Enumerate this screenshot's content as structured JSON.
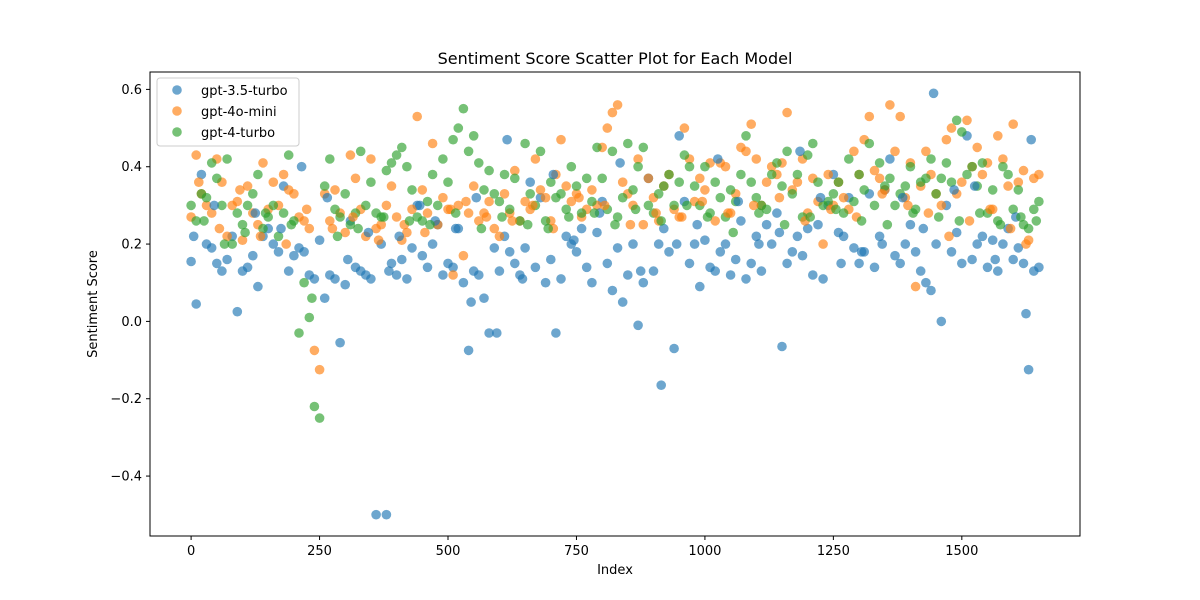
{
  "chart_data": {
    "type": "scatter",
    "title": "Sentiment Score Scatter Plot for Each Model",
    "xlabel": "Index",
    "ylabel": "Sentiment Score",
    "xlim": [
      -80,
      1730
    ],
    "ylim": [
      -0.555,
      0.645
    ],
    "xticks": [
      0,
      250,
      500,
      750,
      1000,
      1250,
      1500
    ],
    "yticks": [
      -0.4,
      -0.2,
      0.0,
      0.2,
      0.4,
      0.6
    ],
    "xtick_labels": [
      "0",
      "250",
      "500",
      "750",
      "1000",
      "1250",
      "1500"
    ],
    "ytick_labels": [
      "−0.4",
      "−0.2",
      "0.0",
      "0.2",
      "0.4",
      "0.6"
    ],
    "grid": false,
    "legend_position": "top-left",
    "n_points": 166,
    "x_step": 10,
    "series": [
      {
        "name": "gpt-3.5-turbo",
        "color": "#1f77b4",
        "y": [
          0.155,
          0.045,
          0.38,
          0.2,
          0.19,
          0.15,
          0.13,
          0.16,
          0.22,
          0.025,
          0.13,
          0.14,
          0.17,
          0.09,
          0.22,
          0.24,
          0.2,
          0.18,
          0.35,
          0.13,
          0.17,
          0.19,
          0.18,
          0.12,
          0.11,
          0.21,
          0.06,
          0.12,
          0.11,
          -0.055,
          0.095,
          0.26,
          0.14,
          0.13,
          0.12,
          0.11,
          -0.5,
          0.2,
          -0.5,
          0.15,
          0.12,
          0.16,
          0.11,
          0.19,
          0.3,
          0.17,
          0.14,
          0.2,
          0.25,
          0.12,
          0.15,
          0.14,
          0.24,
          0.1,
          -0.075,
          0.13,
          0.12,
          0.06,
          -0.03,
          0.19,
          0.13,
          0.22,
          0.18,
          0.15,
          0.12,
          0.19,
          0.36,
          0.14,
          0.32,
          0.1,
          0.16,
          -0.03,
          0.11,
          0.22,
          0.2,
          0.18,
          0.24,
          0.14,
          0.1,
          0.23,
          0.31,
          0.15,
          0.08,
          0.19,
          0.05,
          0.12,
          0.2,
          -0.01,
          0.1,
          0.37,
          0.13,
          0.2,
          0.24,
          0.18,
          -0.07,
          0.48,
          0.31,
          0.15,
          0.2,
          0.09,
          0.21,
          0.14,
          0.13,
          0.18,
          0.2,
          0.12,
          0.16,
          0.26,
          0.11,
          0.15,
          0.22,
          0.13,
          0.25,
          0.2,
          0.28,
          -0.065,
          0.15,
          0.18,
          0.22,
          0.17,
          0.24,
          0.12,
          0.25,
          0.11,
          0.3,
          0.38,
          0.23,
          0.22,
          0.32,
          0.19,
          0.15,
          0.18,
          0.33,
          0.14,
          0.22,
          0.34,
          0.42,
          0.17,
          0.15,
          0.2,
          0.25,
          0.18,
          0.13,
          0.1,
          0.08,
          0.2,
          0.0,
          0.3,
          0.18,
          0.23,
          0.15,
          0.48,
          0.16,
          0.2,
          0.22,
          0.14,
          0.21,
          0.13,
          0.2,
          0.24,
          0.16,
          0.19,
          0.15,
          -0.125,
          0.13,
          0.14
        ]
      },
      {
        "name": "gpt-4o-mini",
        "color": "#ff7f0e",
        "y": [
          0.27,
          0.43,
          0.33,
          0.3,
          0.28,
          0.42,
          0.36,
          0.22,
          0.3,
          0.31,
          0.21,
          0.35,
          0.28,
          0.25,
          0.41,
          0.29,
          0.36,
          0.3,
          0.38,
          0.34,
          0.33,
          0.27,
          0.26,
          0.24,
          -0.075,
          -0.125,
          0.33,
          0.26,
          0.34,
          0.28,
          0.23,
          0.43,
          0.37,
          0.29,
          0.22,
          0.42,
          0.24,
          0.25,
          0.3,
          0.35,
          0.27,
          0.21,
          0.23,
          0.29,
          0.53,
          0.34,
          0.28,
          0.46,
          0.25,
          0.32,
          0.29,
          0.12,
          0.3,
          0.17,
          0.28,
          0.35,
          0.26,
          0.28,
          0.31,
          0.24,
          0.22,
          0.33,
          0.28,
          0.39,
          0.26,
          0.31,
          0.29,
          0.42,
          0.34,
          0.32,
          0.26,
          0.38,
          0.47,
          0.35,
          0.31,
          0.33,
          0.27,
          0.29,
          0.34,
          0.3,
          0.45,
          0.5,
          0.54,
          0.56,
          0.36,
          0.33,
          0.3,
          0.42,
          0.25,
          0.37,
          0.32,
          0.26,
          0.35,
          0.38,
          0.29,
          0.27,
          0.5,
          0.42,
          0.31,
          0.37,
          0.34,
          0.41,
          0.26,
          0.41,
          0.4,
          0.28,
          0.33,
          0.45,
          0.44,
          0.51,
          0.42,
          0.3,
          0.36,
          0.4,
          0.38,
          0.41,
          0.54,
          0.34,
          0.36,
          0.42,
          0.28,
          0.37,
          0.31,
          0.2,
          0.38,
          0.3,
          0.36,
          0.32,
          0.29,
          0.44,
          0.38,
          0.47,
          0.53,
          0.39,
          0.37,
          0.34,
          0.56,
          0.44,
          0.53,
          0.32,
          0.41,
          0.09,
          0.35,
          0.44,
          0.38,
          0.33,
          0.3,
          0.47,
          0.5,
          0.33,
          0.36,
          0.52,
          0.4,
          0.45,
          0.38,
          0.41,
          0.29,
          0.48,
          0.42,
          0.35,
          0.51,
          0.36,
          0.39,
          0.21,
          0.37,
          0.38
        ]
      },
      {
        "name": "gpt-4-turbo",
        "color": "#2ca02c",
        "y": [
          0.3,
          0.26,
          0.33,
          0.32,
          0.41,
          0.37,
          0.3,
          0.42,
          0.2,
          0.28,
          0.25,
          0.3,
          0.33,
          0.38,
          0.24,
          0.27,
          0.3,
          0.22,
          0.28,
          0.43,
          0.26,
          -0.03,
          0.1,
          0.01,
          -0.22,
          -0.25,
          0.35,
          0.42,
          0.29,
          0.27,
          0.33,
          0.25,
          0.28,
          0.44,
          0.3,
          0.36,
          0.28,
          0.27,
          0.39,
          0.41,
          0.43,
          0.45,
          0.4,
          0.34,
          0.27,
          0.26,
          0.31,
          0.38,
          0.3,
          0.42,
          0.36,
          0.47,
          0.5,
          0.55,
          0.44,
          0.48,
          0.41,
          0.34,
          0.39,
          0.33,
          0.31,
          0.38,
          0.29,
          0.37,
          0.26,
          0.46,
          0.33,
          0.3,
          0.44,
          0.26,
          0.36,
          0.32,
          0.33,
          0.29,
          0.4,
          0.35,
          0.28,
          0.37,
          0.31,
          0.45,
          0.37,
          0.29,
          0.44,
          0.27,
          0.32,
          0.46,
          0.34,
          0.4,
          0.45,
          0.3,
          0.28,
          0.33,
          0.35,
          0.38,
          0.3,
          0.36,
          0.43,
          0.4,
          0.35,
          0.3,
          0.4,
          0.28,
          0.36,
          0.32,
          0.27,
          0.34,
          0.31,
          0.38,
          0.48,
          0.36,
          0.32,
          0.3,
          0.29,
          0.38,
          0.41,
          0.35,
          0.44,
          0.33,
          0.38,
          0.27,
          0.43,
          0.46,
          0.36,
          0.3,
          0.31,
          0.33,
          0.36,
          0.28,
          0.42,
          0.31,
          0.38,
          0.34,
          0.46,
          0.3,
          0.41,
          0.35,
          0.37,
          0.3,
          0.33,
          0.35,
          0.4,
          0.29,
          0.36,
          0.37,
          0.42,
          0.33,
          0.37,
          0.41,
          0.36,
          0.52,
          0.49,
          0.38,
          0.4,
          0.35,
          0.41,
          0.28,
          0.34,
          0.26,
          0.4,
          0.38,
          0.29,
          0.34,
          0.25,
          0.24,
          0.29,
          0.31
        ]
      }
    ],
    "extra_points": [
      {
        "series": 0,
        "x": [
          5,
          45,
          125,
          175,
          215,
          265,
          305,
          345,
          385,
          405,
          445,
          475,
          515,
          545,
          555,
          595,
          615,
          645,
          705,
          745,
          795,
          835,
          875,
          915,
          945,
          985,
          1025,
          1065,
          1105,
          1145,
          1185,
          1225,
          1265,
          1305,
          1345,
          1385,
          1425,
          1445,
          1485,
          1525,
          1565,
          1605,
          1625,
          1635
        ],
        "y": [
          0.22,
          0.3,
          0.28,
          0.24,
          0.4,
          0.32,
          0.16,
          0.23,
          0.13,
          0.22,
          0.3,
          0.26,
          0.24,
          0.05,
          0.32,
          -0.03,
          0.47,
          0.11,
          0.38,
          0.21,
          0.28,
          0.41,
          0.13,
          -0.165,
          0.2,
          0.25,
          0.42,
          0.31,
          0.2,
          0.23,
          0.44,
          0.32,
          0.15,
          0.18,
          0.2,
          0.32,
          0.24,
          0.59,
          0.34,
          0.35,
          0.16,
          0.27,
          0.02,
          0.47
        ]
      },
      {
        "series": 1,
        "x": [
          15,
          55,
          95,
          135,
          185,
          225,
          275,
          315,
          365,
          415,
          455,
          505,
          535,
          575,
          625,
          665,
          705,
          755,
          805,
          855,
          905,
          955,
          995,
          1045,
          1095,
          1145,
          1195,
          1245,
          1295,
          1345,
          1395,
          1435,
          1475,
          1515,
          1555,
          1595,
          1625
        ],
        "y": [
          0.36,
          0.24,
          0.34,
          0.22,
          0.2,
          0.29,
          0.24,
          0.27,
          0.21,
          0.25,
          0.23,
          0.29,
          0.31,
          0.27,
          0.26,
          0.3,
          0.24,
          0.32,
          0.3,
          0.25,
          0.28,
          0.27,
          0.31,
          0.28,
          0.3,
          0.32,
          0.26,
          0.29,
          0.27,
          0.33,
          0.3,
          0.28,
          0.22,
          0.26,
          0.29,
          0.24,
          0.2
        ]
      },
      {
        "series": 2,
        "x": [
          25,
          65,
          105,
          145,
          195,
          235,
          285,
          325,
          375,
          425,
          465,
          515,
          565,
          605,
          655,
          695,
          735,
          785,
          825,
          865,
          915,
          965,
          1005,
          1055,
          1105,
          1155,
          1205,
          1255,
          1305,
          1355,
          1405,
          1455,
          1495,
          1535,
          1575,
          1615,
          1645
        ],
        "y": [
          0.26,
          0.2,
          0.23,
          0.28,
          0.25,
          0.06,
          0.22,
          0.24,
          0.27,
          0.26,
          0.25,
          0.28,
          0.24,
          0.27,
          0.25,
          0.24,
          0.27,
          0.28,
          0.25,
          0.29,
          0.26,
          0.3,
          0.27,
          0.23,
          0.28,
          0.25,
          0.27,
          0.29,
          0.26,
          0.25,
          0.28,
          0.27,
          0.26,
          0.28,
          0.25,
          0.27,
          0.26
        ]
      }
    ]
  }
}
